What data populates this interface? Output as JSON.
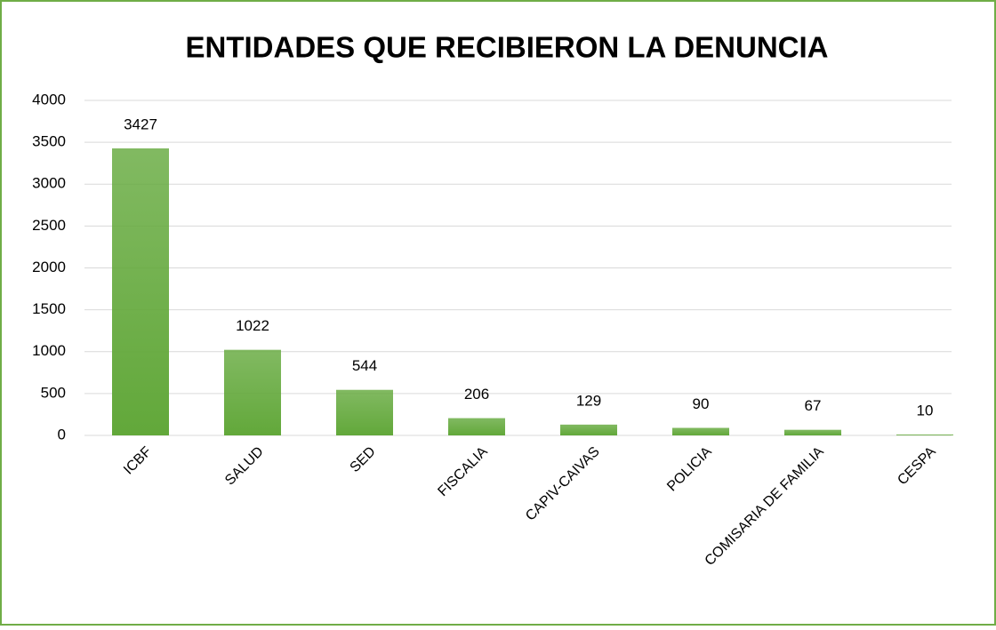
{
  "chart_data": {
    "type": "bar",
    "title": "ENTIDADES QUE RECIBIERON LA DENUNCIA",
    "categories": [
      "ICBF",
      "SALUD",
      "SED",
      "FISCALIA",
      "CAPIV-CAIVAS",
      "POLICIA",
      "COMISARIA DE FAMILIA",
      "CESPA"
    ],
    "values": [
      3427,
      1022,
      544,
      206,
      129,
      90,
      67,
      10
    ],
    "color": "#62a83a",
    "ylim": [
      0,
      4000
    ],
    "yticks": [
      0,
      500,
      1000,
      1500,
      2000,
      2500,
      3000,
      3500,
      4000
    ],
    "grid": true
  }
}
